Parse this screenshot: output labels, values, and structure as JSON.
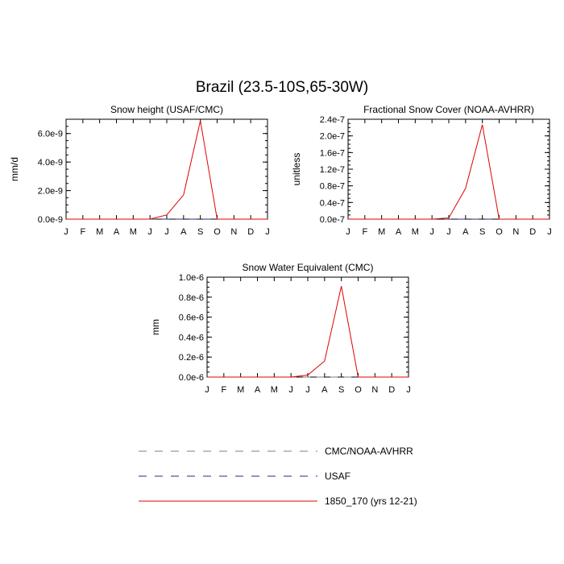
{
  "page_title": "Brazil (23.5-10S,65-30W)",
  "months": [
    "J",
    "F",
    "M",
    "A",
    "M",
    "J",
    "J",
    "A",
    "S",
    "O",
    "N",
    "D",
    "J"
  ],
  "colors": {
    "model": "#e00000",
    "obs_a": "#7f7f7f",
    "obs_b": "#2b2b7a"
  },
  "legend": [
    {
      "label": "CMC/NOAA-AVHRR",
      "style": "dashed",
      "color": "#7f7f7f"
    },
    {
      "label": "USAF",
      "style": "dashed",
      "color": "#2b2b7a"
    },
    {
      "label": "1850_170 (yrs 12-21)",
      "style": "solid",
      "color": "#e00000"
    }
  ],
  "chart_data": [
    {
      "type": "line",
      "title": "Snow height (USAF/CMC)",
      "ylabel": "mm/d",
      "ylim": [
        0,
        7e-09
      ],
      "yticks": [
        0,
        2e-09,
        4e-09,
        6e-09
      ],
      "ytick_labels": [
        "0.0e-9",
        "2.0e-9",
        "4.0e-9",
        "6.0e-9"
      ],
      "series": [
        {
          "name": "CMC/NOAA-AVHRR",
          "values": [
            0,
            0,
            0,
            0,
            0,
            0,
            0,
            0,
            0,
            0,
            0,
            0,
            0
          ]
        },
        {
          "name": "USAF",
          "values": [
            0,
            0,
            0,
            0,
            0,
            0,
            0,
            0,
            0,
            0,
            0,
            0,
            0
          ]
        },
        {
          "name": "1850_170 (yrs 12-21)",
          "values": [
            0,
            0,
            0,
            0,
            0,
            0,
            3e-10,
            1.7e-09,
            6.9e-09,
            0,
            0,
            0,
            0
          ]
        }
      ]
    },
    {
      "type": "line",
      "title": "Fractional Snow Cover (NOAA-AVHRR)",
      "ylabel": "unitless",
      "ylim": [
        0,
        2.4e-07
      ],
      "yticks": [
        0,
        4e-08,
        8e-08,
        1.2e-07,
        1.6e-07,
        2e-07,
        2.4e-07
      ],
      "ytick_labels": [
        "0.0e-7",
        "0.4e-7",
        "0.8e-7",
        "1.2e-7",
        "1.6e-7",
        "2.0e-7",
        "2.4e-7"
      ],
      "series": [
        {
          "name": "CMC/NOAA-AVHRR",
          "values": [
            0,
            0,
            0,
            0,
            0,
            0,
            0,
            0,
            0,
            0,
            0,
            0,
            0
          ]
        },
        {
          "name": "USAF",
          "values": [
            0,
            0,
            0,
            0,
            0,
            0,
            0,
            0,
            0,
            0,
            0,
            0,
            0
          ]
        },
        {
          "name": "1850_170 (yrs 12-21)",
          "values": [
            0,
            0,
            0,
            0,
            0,
            0,
            3e-09,
            7.4e-08,
            2.27e-07,
            0,
            0,
            0,
            0
          ]
        }
      ]
    },
    {
      "type": "line",
      "title": "Snow Water Equivalent (CMC)",
      "ylabel": "mm",
      "ylim": [
        0,
        1e-06
      ],
      "yticks": [
        0,
        2e-07,
        4e-07,
        6e-07,
        8e-07,
        1e-06
      ],
      "ytick_labels": [
        "0.0e-6",
        "0.2e-6",
        "0.4e-6",
        "0.6e-6",
        "0.8e-6",
        "1.0e-6"
      ],
      "series": [
        {
          "name": "CMC/NOAA-AVHRR",
          "values": [
            0,
            0,
            0,
            0,
            0,
            0,
            0,
            0,
            0,
            0,
            0,
            0,
            0
          ]
        },
        {
          "name": "1850_170 (yrs 12-21)",
          "values": [
            0,
            0,
            0,
            0,
            0,
            0,
            2e-08,
            1.6e-07,
            9.1e-07,
            0,
            0,
            0,
            0
          ]
        }
      ]
    }
  ]
}
